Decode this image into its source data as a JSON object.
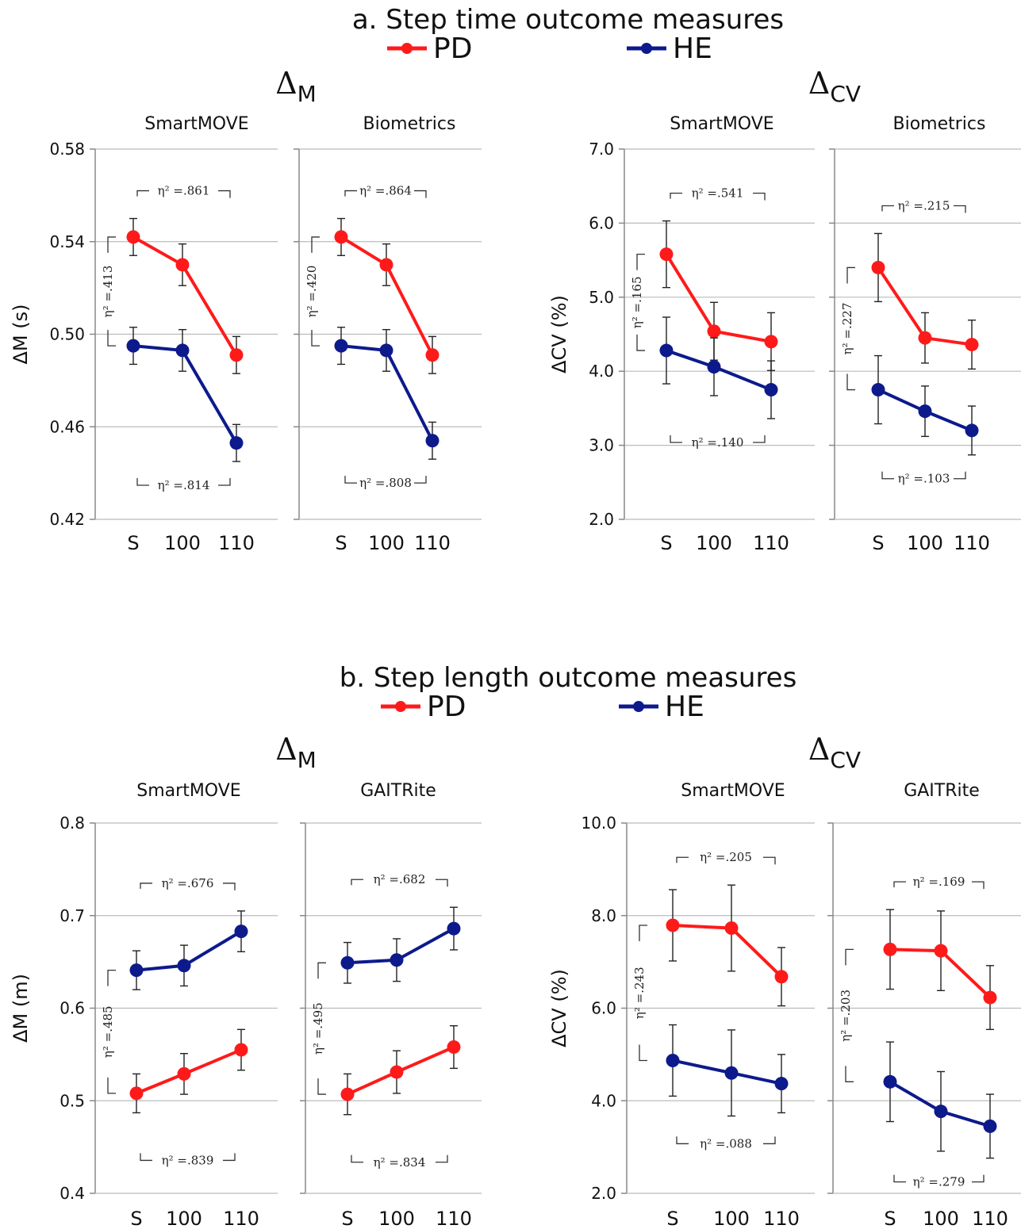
{
  "colors": {
    "PD": "#ff1a1a",
    "HE": "#0d1a8c"
  },
  "sections": [
    {
      "title": "a. Step time outcome measures",
      "legend": [
        "PD",
        "HE"
      ],
      "groups": [
        {
          "title": "Δ",
          "sub": "M"
        },
        {
          "title": "Δ",
          "sub": "CV"
        }
      ]
    },
    {
      "title": "b. Step length outcome measures",
      "legend": [
        "PD",
        "HE"
      ],
      "groups": [
        {
          "title": "Δ",
          "sub": "M"
        },
        {
          "title": "Δ",
          "sub": "CV"
        }
      ]
    }
  ],
  "chart_data": [
    {
      "type": "line",
      "section": "a",
      "group": "ΔM",
      "title": "SmartMOVE",
      "ylabel": "ΔM (s)",
      "ylim": [
        0.42,
        0.58
      ],
      "yticks": [
        "0.42",
        "0.46",
        "0.50",
        "0.54",
        "0.58"
      ],
      "categories": [
        "S",
        "100",
        "110"
      ],
      "series": [
        {
          "name": "PD",
          "values": [
            0.542,
            0.53,
            0.491
          ],
          "err": [
            0.008,
            0.009,
            0.008
          ]
        },
        {
          "name": "HE",
          "values": [
            0.495,
            0.493,
            0.453
          ],
          "err": [
            0.008,
            0.009,
            0.008
          ]
        }
      ],
      "eta": {
        "top": "η² =.861",
        "bottom": "η² =.814",
        "side": "η² =.413"
      }
    },
    {
      "type": "line",
      "section": "a",
      "group": "ΔM",
      "title": "Biometrics",
      "ylabel": "",
      "ylim": [
        0.42,
        0.58
      ],
      "yticks": [],
      "categories": [
        "S",
        "100",
        "110"
      ],
      "series": [
        {
          "name": "PD",
          "values": [
            0.542,
            0.53,
            0.491
          ],
          "err": [
            0.008,
            0.009,
            0.008
          ]
        },
        {
          "name": "HE",
          "values": [
            0.495,
            0.493,
            0.454
          ],
          "err": [
            0.008,
            0.009,
            0.008
          ]
        }
      ],
      "eta": {
        "top": "η² =.864",
        "bottom": "η² =.808",
        "side": "η² =.420"
      }
    },
    {
      "type": "line",
      "section": "a",
      "group": "ΔCV",
      "title": "SmartMOVE",
      "ylabel": "ΔCV (%)",
      "ylim": [
        2.0,
        7.0
      ],
      "yticks": [
        "2.0",
        "3.0",
        "4.0",
        "5.0",
        "6.0",
        "7.0"
      ],
      "categories": [
        "S",
        "100",
        "110"
      ],
      "series": [
        {
          "name": "PD",
          "values": [
            5.58,
            4.54,
            4.4
          ],
          "err": [
            0.45,
            0.39,
            0.39
          ]
        },
        {
          "name": "HE",
          "values": [
            4.28,
            4.06,
            3.75
          ],
          "err": [
            0.45,
            0.39,
            0.39
          ]
        }
      ],
      "eta": {
        "top": "η² =.541",
        "bottom": "η² =.140",
        "side": "η² =.165"
      }
    },
    {
      "type": "line",
      "section": "a",
      "group": "ΔCV",
      "title": "Biometrics",
      "ylabel": "",
      "ylim": [
        2.0,
        7.0
      ],
      "yticks": [],
      "categories": [
        "S",
        "100",
        "110"
      ],
      "series": [
        {
          "name": "PD",
          "values": [
            5.4,
            4.45,
            4.36
          ],
          "err": [
            0.46,
            0.34,
            0.33
          ]
        },
        {
          "name": "HE",
          "values": [
            3.75,
            3.46,
            3.2
          ],
          "err": [
            0.46,
            0.34,
            0.33
          ]
        }
      ],
      "eta": {
        "top": "η² =.215",
        "bottom": "η² =.103",
        "side": "η² =.227"
      }
    },
    {
      "type": "line",
      "section": "b",
      "group": "ΔM",
      "title": "SmartMOVE",
      "ylabel": "ΔM (m)",
      "ylim": [
        0.4,
        0.8
      ],
      "yticks": [
        "0.4",
        "0.5",
        "0.6",
        "0.7",
        "0.8"
      ],
      "categories": [
        "S",
        "100",
        "110"
      ],
      "series": [
        {
          "name": "PD",
          "values": [
            0.508,
            0.529,
            0.555
          ],
          "err": [
            0.021,
            0.022,
            0.022
          ]
        },
        {
          "name": "HE",
          "values": [
            0.641,
            0.646,
            0.683
          ],
          "err": [
            0.021,
            0.022,
            0.022
          ]
        }
      ],
      "eta": {
        "top": "η² =.676",
        "bottom": "η² =.839",
        "side": "η² =.485"
      }
    },
    {
      "type": "line",
      "section": "b",
      "group": "ΔM",
      "title": "GAITRite",
      "ylabel": "",
      "ylim": [
        0.4,
        0.8
      ],
      "yticks": [],
      "categories": [
        "S",
        "100",
        "110"
      ],
      "series": [
        {
          "name": "PD",
          "values": [
            0.507,
            0.531,
            0.558
          ],
          "err": [
            0.022,
            0.023,
            0.023
          ]
        },
        {
          "name": "HE",
          "values": [
            0.649,
            0.652,
            0.686
          ],
          "err": [
            0.022,
            0.023,
            0.023
          ]
        }
      ],
      "eta": {
        "top": "η² =.682",
        "bottom": "η² =.834",
        "side": "η² =.495"
      }
    },
    {
      "type": "line",
      "section": "b",
      "group": "ΔCV",
      "title": "SmartMOVE",
      "ylabel": "ΔCV (%)",
      "ylim": [
        2.0,
        10.0
      ],
      "yticks": [
        "2.0",
        "4.0",
        "6.0",
        "8.0",
        "10.0"
      ],
      "categories": [
        "S",
        "100",
        "110"
      ],
      "series": [
        {
          "name": "PD",
          "values": [
            7.79,
            7.73,
            6.68
          ],
          "err": [
            0.77,
            0.93,
            0.63
          ]
        },
        {
          "name": "HE",
          "values": [
            4.87,
            4.6,
            4.37
          ],
          "err": [
            0.77,
            0.93,
            0.63
          ]
        }
      ],
      "eta": {
        "top": "η² =.205",
        "bottom": "η² =.088",
        "side": "η² =.243"
      }
    },
    {
      "type": "line",
      "section": "b",
      "group": "ΔCV",
      "title": "GAITRite",
      "ylabel": "",
      "ylim": [
        2.0,
        10.0
      ],
      "yticks": [],
      "categories": [
        "S",
        "100",
        "110"
      ],
      "series": [
        {
          "name": "PD",
          "values": [
            7.27,
            7.24,
            6.23
          ],
          "err": [
            0.86,
            0.86,
            0.69
          ]
        },
        {
          "name": "HE",
          "values": [
            4.41,
            3.77,
            3.45
          ],
          "err": [
            0.86,
            0.86,
            0.69
          ]
        }
      ],
      "eta": {
        "top": "η² =.169",
        "bottom": "η² =.279",
        "side": "η² =.203"
      }
    }
  ]
}
